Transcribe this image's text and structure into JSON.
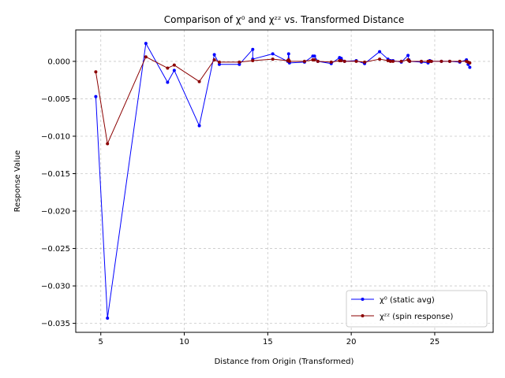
{
  "chart_data": {
    "type": "line",
    "title": "Comparison of χ⁰ and χᶻᶻ vs. Transformed Distance",
    "xlabel": "Distance from Origin (Transformed)",
    "ylabel": "Response Value",
    "xlim": [
      3.5,
      28.5
    ],
    "ylim": [
      -0.0362,
      0.0042
    ],
    "xticks": [
      5,
      10,
      15,
      20,
      25
    ],
    "xtick_labels": [
      "5",
      "10",
      "15",
      "20",
      "25"
    ],
    "yticks": [
      0.0,
      -0.005,
      -0.01,
      -0.015,
      -0.02,
      -0.025,
      -0.03,
      -0.035
    ],
    "ytick_labels": [
      "0.000",
      "−0.005",
      "−0.010",
      "−0.015",
      "−0.020",
      "−0.025",
      "−0.030",
      "−0.035"
    ],
    "grid": true,
    "legend_position": "lower-right",
    "series": [
      {
        "name": "χ⁰ (static avg)",
        "color": "#0000ff",
        "x": [
          4.7,
          5.4,
          7.7,
          9.0,
          9.4,
          10.9,
          11.8,
          12.1,
          13.3,
          14.1,
          14.1,
          15.3,
          16.2,
          16.25,
          16.3,
          17.2,
          17.7,
          17.8,
          18.0,
          18.8,
          19.3,
          19.4,
          19.6,
          20.3,
          20.8,
          21.7,
          22.2,
          22.35,
          22.5,
          23.0,
          23.4,
          23.45,
          23.5,
          24.2,
          24.6,
          24.7,
          24.8,
          25.4,
          25.9,
          26.5,
          26.9,
          27.0,
          27.1
        ],
        "y": [
          -0.0047,
          -0.0343,
          0.0024,
          -0.0028,
          -0.0012,
          -0.0086,
          0.0009,
          -0.0004,
          -0.0004,
          0.0016,
          0.0003,
          0.001,
          0.0,
          0.001,
          -0.0002,
          -0.0001,
          0.0007,
          0.0007,
          0.0,
          -0.0003,
          0.0005,
          0.0004,
          0.0,
          0.0001,
          -0.0003,
          0.0013,
          0.0003,
          0.0001,
          0.0001,
          -0.0001,
          0.0008,
          0.0002,
          0.0,
          -0.0001,
          -0.0002,
          0.0001,
          0.0,
          0.0,
          0.0,
          -0.0001,
          0.0002,
          -0.0004,
          -0.0008
        ]
      },
      {
        "name": "χᶻᶻ (spin response)",
        "color": "#8b0000",
        "x": [
          4.7,
          5.4,
          7.7,
          9.0,
          9.4,
          10.9,
          11.8,
          12.1,
          13.3,
          14.1,
          15.3,
          16.2,
          16.25,
          16.3,
          17.2,
          17.7,
          17.8,
          18.0,
          18.8,
          19.3,
          19.4,
          19.6,
          20.3,
          20.8,
          21.7,
          22.2,
          22.35,
          22.5,
          23.0,
          23.4,
          23.45,
          23.5,
          24.2,
          24.6,
          24.7,
          24.8,
          25.4,
          25.9,
          26.5,
          26.9,
          27.0,
          27.1
        ],
        "y": [
          -0.0014,
          -0.011,
          0.0006,
          -0.0009,
          -0.0005,
          -0.0027,
          0.0002,
          -0.0001,
          -0.0001,
          0.0001,
          0.0003,
          0.0001,
          0.0002,
          0.0,
          0.0,
          0.0002,
          0.0002,
          0.0,
          -0.0001,
          0.0001,
          0.0001,
          0.0,
          0.0,
          -0.0001,
          0.0003,
          0.0001,
          0.0,
          0.0,
          0.0,
          0.0002,
          0.0001,
          0.0,
          0.0,
          0.0,
          0.0,
          0.0,
          0.0,
          0.0,
          0.0,
          0.0,
          -0.0001,
          -0.0002
        ]
      }
    ]
  }
}
